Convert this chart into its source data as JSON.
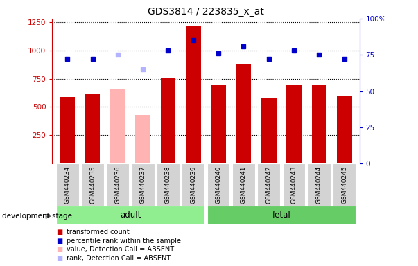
{
  "title": "GDS3814 / 223835_x_at",
  "samples": [
    "GSM440234",
    "GSM440235",
    "GSM440236",
    "GSM440237",
    "GSM440238",
    "GSM440239",
    "GSM440240",
    "GSM440241",
    "GSM440242",
    "GSM440243",
    "GSM440244",
    "GSM440245"
  ],
  "bar_values": [
    590,
    610,
    660,
    430,
    760,
    1210,
    700,
    880,
    580,
    700,
    690,
    600
  ],
  "bar_colors": [
    "#cc0000",
    "#cc0000",
    "#ffb3b3",
    "#ffb3b3",
    "#cc0000",
    "#cc0000",
    "#cc0000",
    "#cc0000",
    "#cc0000",
    "#cc0000",
    "#cc0000",
    "#cc0000"
  ],
  "rank_values": [
    72,
    72,
    75,
    65,
    78,
    85,
    76,
    81,
    72,
    78,
    75,
    72
  ],
  "rank_absent": [
    false,
    false,
    true,
    true,
    false,
    false,
    false,
    false,
    false,
    false,
    false,
    false
  ],
  "rank_absent_color": "#b3b3ff",
  "rank_present_color": "#0000cc",
  "ylim_left": [
    0,
    1280
  ],
  "ylim_right": [
    0,
    100
  ],
  "yticks_left": [
    250,
    500,
    750,
    1000,
    1250
  ],
  "yticks_right": [
    0,
    25,
    50,
    75,
    100
  ],
  "ytick_labels_right": [
    "0",
    "25",
    "50",
    "75",
    "100%"
  ],
  "left_color": "#cc0000",
  "right_color": "#0000cc",
  "groups": [
    {
      "label": "adult",
      "start": 0,
      "end": 5,
      "color": "#90ee90"
    },
    {
      "label": "fetal",
      "start": 6,
      "end": 11,
      "color": "#66cc66"
    }
  ],
  "group_bar_color": "#d3d3d3",
  "development_stage_label": "development stage",
  "legend_items": [
    {
      "label": "transformed count",
      "color": "#cc0000"
    },
    {
      "label": "percentile rank within the sample",
      "color": "#0000cc"
    },
    {
      "label": "value, Detection Call = ABSENT",
      "color": "#ffb3b3"
    },
    {
      "label": "rank, Detection Call = ABSENT",
      "color": "#b3b3ff"
    }
  ],
  "bg_color": "#ffffff"
}
